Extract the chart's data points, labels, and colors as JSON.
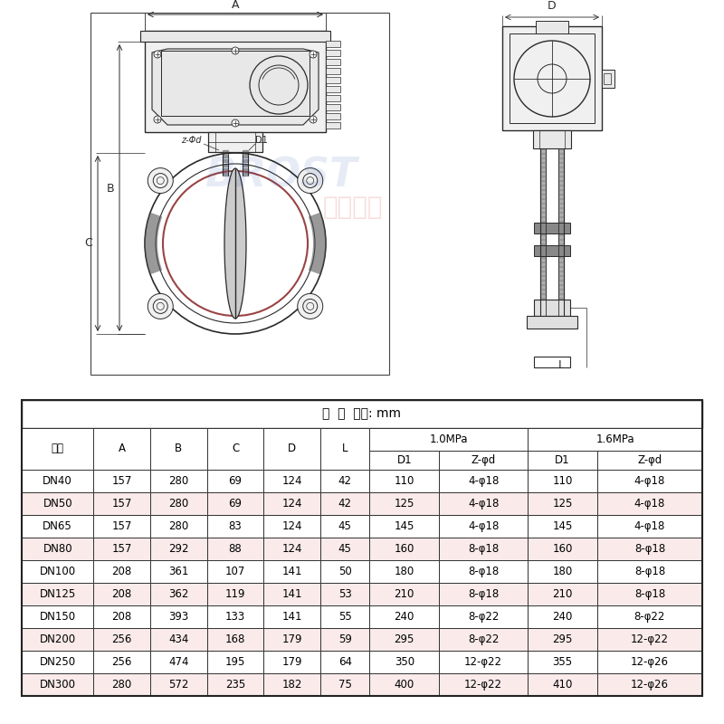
{
  "table_title": "尺  寸  单位: mm",
  "rows": [
    [
      "DN40",
      "157",
      "280",
      "69",
      "124",
      "42",
      "110",
      "4-φ18",
      "110",
      "4-φ18"
    ],
    [
      "DN50",
      "157",
      "280",
      "69",
      "124",
      "42",
      "125",
      "4-φ18",
      "125",
      "4-φ18"
    ],
    [
      "DN65",
      "157",
      "280",
      "83",
      "124",
      "45",
      "145",
      "4-φ18",
      "145",
      "4-φ18"
    ],
    [
      "DN80",
      "157",
      "292",
      "88",
      "124",
      "45",
      "160",
      "8-φ18",
      "160",
      "8-φ18"
    ],
    [
      "DN100",
      "208",
      "361",
      "107",
      "141",
      "50",
      "180",
      "8-φ18",
      "180",
      "8-φ18"
    ],
    [
      "DN125",
      "208",
      "362",
      "119",
      "141",
      "53",
      "210",
      "8-φ18",
      "210",
      "8-φ18"
    ],
    [
      "DN150",
      "208",
      "393",
      "133",
      "141",
      "55",
      "240",
      "8-φ22",
      "240",
      "8-φ22"
    ],
    [
      "DN200",
      "256",
      "434",
      "168",
      "179",
      "59",
      "295",
      "8-φ22",
      "295",
      "12-φ22"
    ],
    [
      "DN250",
      "256",
      "474",
      "195",
      "179",
      "64",
      "350",
      "12-φ22",
      "355",
      "12-φ26"
    ],
    [
      "DN300",
      "280",
      "572",
      "235",
      "182",
      "75",
      "400",
      "12-φ22",
      "410",
      "12-φ26"
    ]
  ],
  "bg_color": "#ffffff",
  "line_color": "#2a2a2a",
  "alt_row_color": "#f5e8e8"
}
